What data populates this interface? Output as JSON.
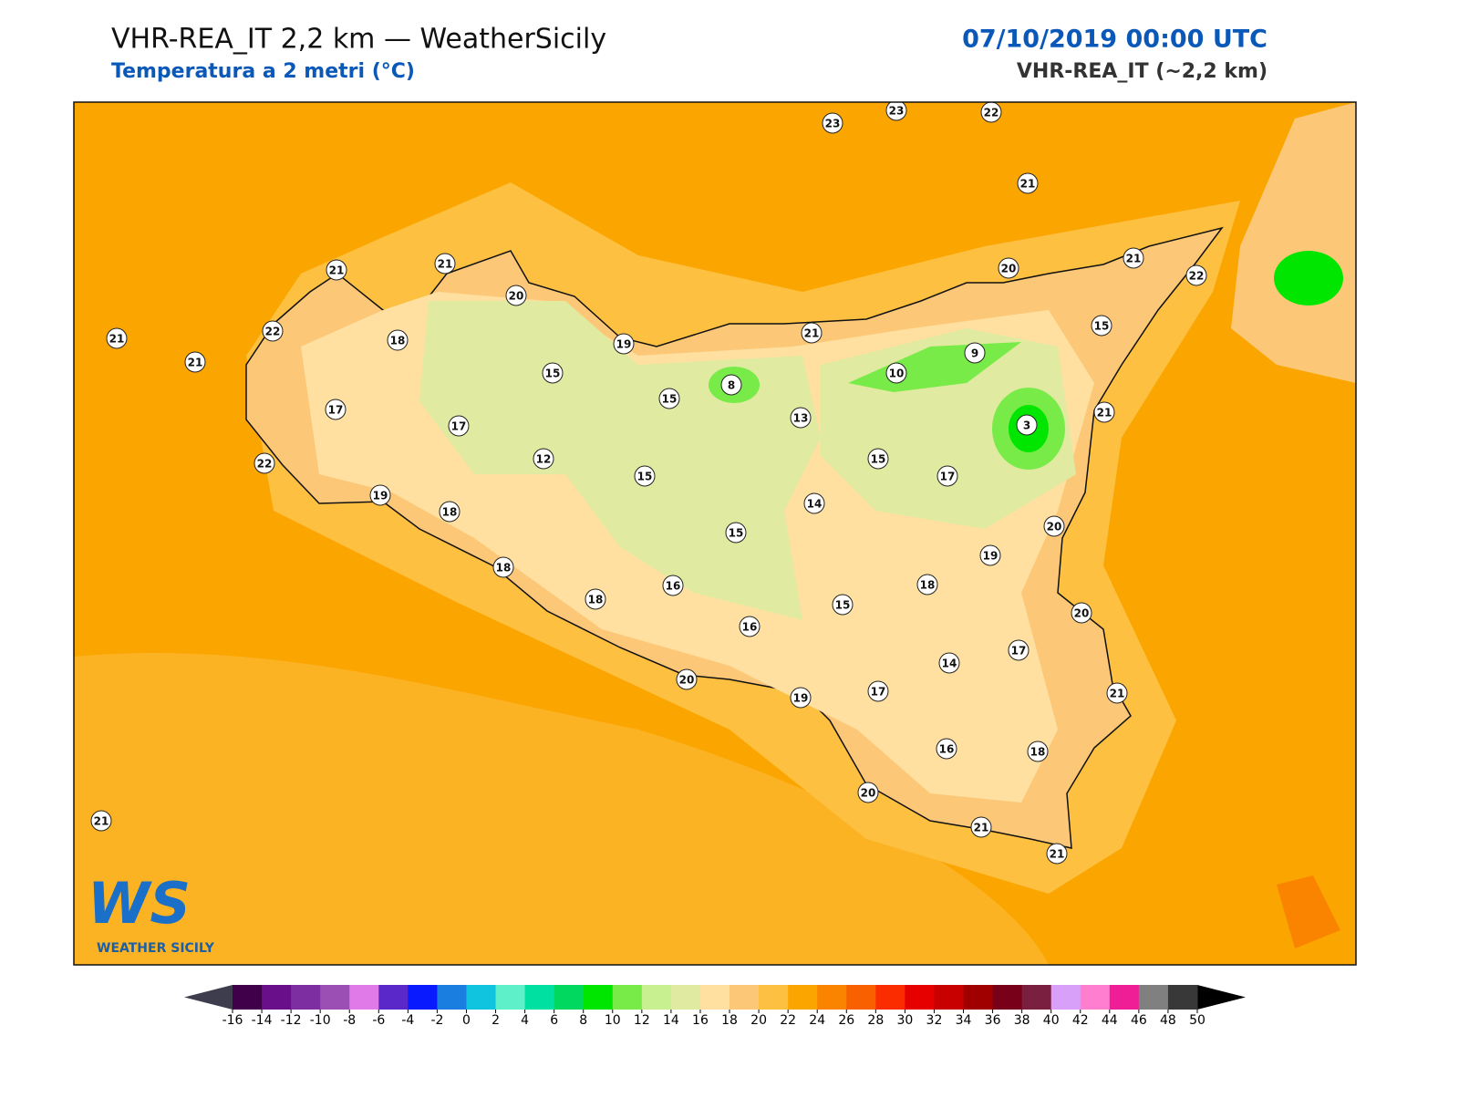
{
  "header": {
    "title": "VHR-REA_IT 2,2 km — WeatherSicily",
    "subtitle": "Temperatura a 2 metri (°C)",
    "date": "07/10/2019 00:00 UTC",
    "model": "VHR-REA_IT (~2,2 km)"
  },
  "logo": {
    "mark": "WS",
    "name": "WEATHER SICILY"
  },
  "stations": [
    23,
    23,
    22,
    21,
    21,
    21,
    20,
    21,
    22,
    21,
    18,
    19,
    15,
    15,
    8,
    21,
    20,
    21,
    22,
    15,
    9,
    10,
    13,
    3,
    21,
    17,
    17,
    22,
    12,
    15,
    15,
    17,
    19,
    18,
    14,
    15,
    20,
    19,
    18,
    16,
    18,
    18,
    15,
    16,
    20,
    17,
    14,
    20,
    19,
    17,
    21,
    16,
    18,
    20,
    21,
    21,
    21
  ],
  "colorbar": {
    "ticks": [
      -16,
      -14,
      -12,
      -10,
      -8,
      -6,
      -4,
      -2,
      0,
      2,
      4,
      6,
      8,
      10,
      12,
      14,
      16,
      18,
      20,
      22,
      24,
      26,
      28,
      30,
      32,
      34,
      36,
      38,
      40,
      42,
      44,
      46,
      48,
      50
    ],
    "colors": [
      "#40004a",
      "#6a0f8a",
      "#7d2ea0",
      "#9b4fb5",
      "#e07ae8",
      "#5a28c8",
      "#0a1aff",
      "#1a7ee0",
      "#10c4e0",
      "#5ef0c8",
      "#00e0a0",
      "#00d860",
      "#00e600",
      "#78eb48",
      "#c8f090",
      "#e0eaa0",
      "#ffe0a0",
      "#fcc878",
      "#fdc040",
      "#fba500",
      "#fa8400",
      "#f86000",
      "#fb2c00",
      "#e60000",
      "#c80000",
      "#a00000",
      "#780018",
      "#7a1f40",
      "#d8a0f8",
      "#ff7ed0",
      "#f01e96",
      "#808080",
      "#383838"
    ],
    "under": "#3d3d4d",
    "over": "#000000"
  }
}
